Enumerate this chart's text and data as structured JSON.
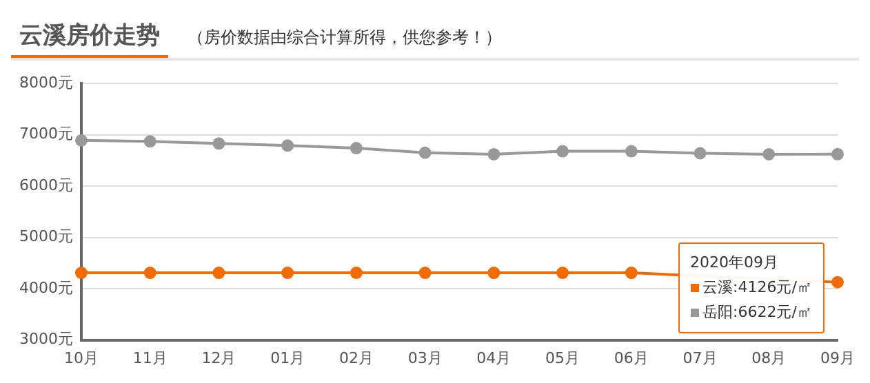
{
  "chart_data": {
    "type": "line",
    "title": "云溪房价走势",
    "subtitle": "（房价数据由综合计算所得，供您参考！）",
    "categories": [
      "10月",
      "11月",
      "12月",
      "01月",
      "02月",
      "03月",
      "04月",
      "05月",
      "06月",
      "07月",
      "08月",
      "09月"
    ],
    "series": [
      {
        "name": "云溪",
        "color": "#f06c00",
        "values": [
          4310,
          4310,
          4310,
          4310,
          4310,
          4310,
          4310,
          4310,
          4310,
          null,
          null,
          4126
        ]
      },
      {
        "name": "岳阳",
        "color": "#999999",
        "values": [
          6890,
          6870,
          6830,
          6790,
          6740,
          6650,
          6620,
          6680,
          6680,
          6640,
          6620,
          6622
        ]
      }
    ],
    "ylim": [
      3000,
      8000
    ],
    "yticks": [
      {
        "value": 3000,
        "label": "3000元"
      },
      {
        "value": 4000,
        "label": "4000元"
      },
      {
        "value": 5000,
        "label": "5000元"
      },
      {
        "value": 6000,
        "label": "6000元"
      },
      {
        "value": 7000,
        "label": "7000元"
      },
      {
        "value": 8000,
        "label": "8000元"
      }
    ],
    "grid": "y",
    "marker": "circle",
    "legend": "bottom right",
    "annotations": [
      "2020年09月",
      ":4126元/㎡",
      ":6622元/㎡"
    ]
  }
}
